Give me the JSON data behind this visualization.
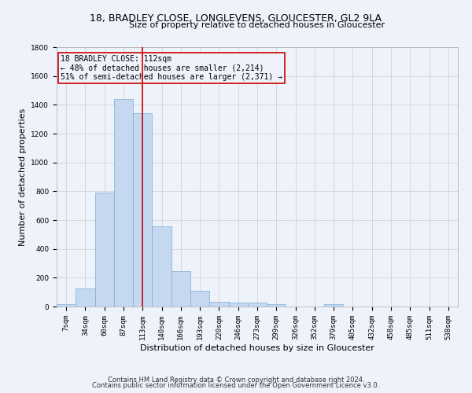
{
  "title1": "18, BRADLEY CLOSE, LONGLEVENS, GLOUCESTER, GL2 9LA",
  "title2": "Size of property relative to detached houses in Gloucester",
  "xlabel": "Distribution of detached houses by size in Gloucester",
  "ylabel": "Number of detached properties",
  "categories": [
    "7sqm",
    "34sqm",
    "60sqm",
    "87sqm",
    "113sqm",
    "140sqm",
    "166sqm",
    "193sqm",
    "220sqm",
    "246sqm",
    "273sqm",
    "299sqm",
    "326sqm",
    "352sqm",
    "379sqm",
    "405sqm",
    "432sqm",
    "458sqm",
    "485sqm",
    "511sqm",
    "538sqm"
  ],
  "values": [
    15,
    125,
    790,
    1440,
    1340,
    555,
    248,
    108,
    35,
    30,
    28,
    18,
    0,
    0,
    18,
    0,
    0,
    0,
    0,
    0,
    0
  ],
  "bar_color": "#c5d8f0",
  "bar_edgecolor": "#7aadd4",
  "grid_color": "#cccccc",
  "vline_x": 4,
  "vline_color": "#cc0000",
  "annotation_title": "18 BRADLEY CLOSE: 112sqm",
  "annotation_line1": "← 48% of detached houses are smaller (2,214)",
  "annotation_line2": "51% of semi-detached houses are larger (2,371) →",
  "annotation_box_color": "#cc0000",
  "footer1": "Contains HM Land Registry data © Crown copyright and database right 2024.",
  "footer2": "Contains public sector information licensed under the Open Government Licence v3.0.",
  "ylim": [
    0,
    1800
  ],
  "yticks": [
    0,
    200,
    400,
    600,
    800,
    1000,
    1200,
    1400,
    1600,
    1800
  ],
  "background_color": "#eef2fa",
  "title1_fontsize": 9,
  "title2_fontsize": 8,
  "ylabel_fontsize": 8,
  "xlabel_fontsize": 8,
  "tick_fontsize": 6.5,
  "footer_fontsize": 6,
  "ann_fontsize": 7
}
